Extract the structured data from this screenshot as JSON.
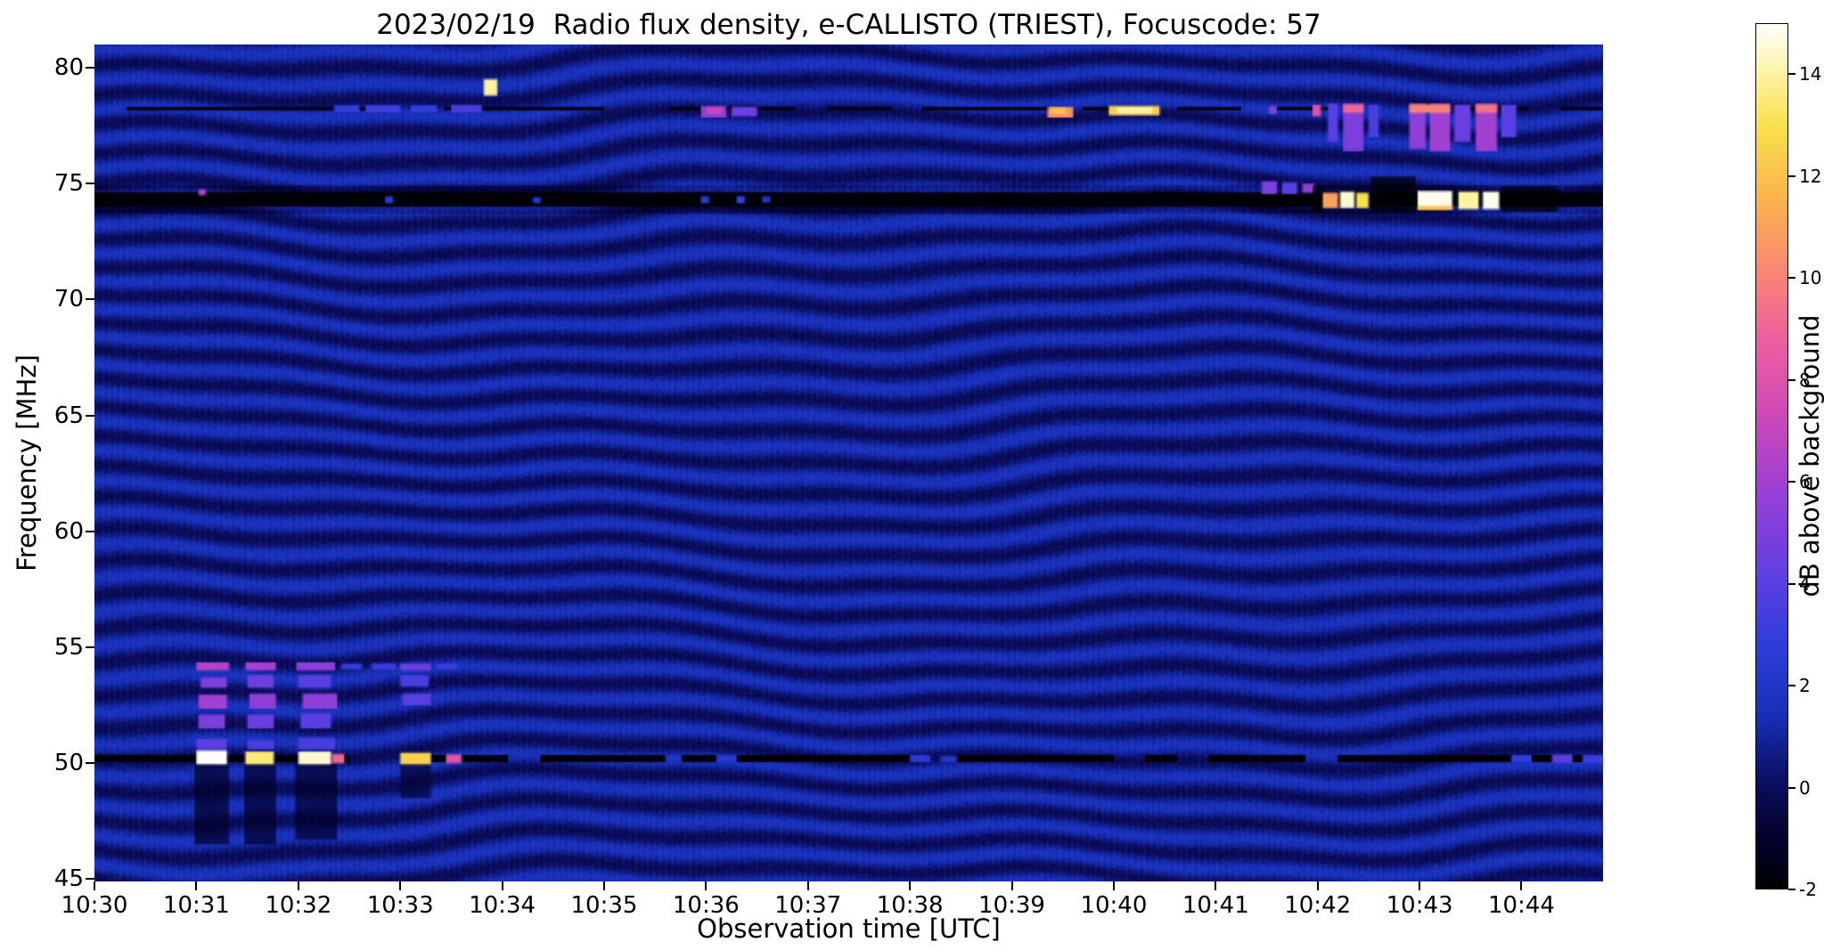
{
  "figure": {
    "background_color": "#ffffff",
    "axis_color": "#000000"
  },
  "chart_data": {
    "type": "heatmap",
    "title": "2023/02/19  Radio flux density, e-CALLISTO (TRIEST), Focuscode: 57",
    "xlabel": "Observation time [UTC]",
    "ylabel": "Frequency [MHz]",
    "x_axis": {
      "unit": "UTC time",
      "range_minutes_after_start": [
        0,
        14.8
      ],
      "tick_minutes": [
        0,
        1,
        2,
        3,
        4,
        5,
        6,
        7,
        8,
        9,
        10,
        11,
        12,
        13,
        14
      ],
      "tick_labels": [
        "10:30",
        "10:31",
        "10:32",
        "10:33",
        "10:34",
        "10:35",
        "10:36",
        "10:37",
        "10:38",
        "10:39",
        "10:40",
        "10:41",
        "10:42",
        "10:43",
        "10:44"
      ]
    },
    "y_axis": {
      "unit": "MHz",
      "range_mhz": [
        44.9,
        81.0
      ],
      "tick_values": [
        45,
        50,
        55,
        60,
        65,
        70,
        75,
        80
      ]
    },
    "colorbar": {
      "label": "dB above background",
      "range_db": [
        -2,
        15
      ],
      "tick_values": [
        -2,
        0,
        2,
        4,
        6,
        8,
        10,
        12,
        14
      ],
      "gradient_stops": [
        {
          "pos": 0.0,
          "color": "#000004"
        },
        {
          "pos": 0.06,
          "color": "#03032e"
        },
        {
          "pos": 0.12,
          "color": "#0b0c5c"
        },
        {
          "pos": 0.2,
          "color": "#1730b8"
        },
        {
          "pos": 0.28,
          "color": "#2e3ddb"
        },
        {
          "pos": 0.36,
          "color": "#5e3fe2"
        },
        {
          "pos": 0.46,
          "color": "#9b3fd5"
        },
        {
          "pos": 0.55,
          "color": "#cf4ab8"
        },
        {
          "pos": 0.64,
          "color": "#f0619c"
        },
        {
          "pos": 0.72,
          "color": "#f98a70"
        },
        {
          "pos": 0.8,
          "color": "#fcb44e"
        },
        {
          "pos": 0.88,
          "color": "#f9e04b"
        },
        {
          "pos": 0.94,
          "color": "#fdf3a0"
        },
        {
          "pos": 1.0,
          "color": "#ffffff"
        }
      ]
    },
    "background_pattern": {
      "description": "undulating horizontal interference fringes over dark blue background",
      "base_db": 0.75,
      "fringe_amplitude_db": 0.85,
      "fringe_spacing_mhz": 1.3,
      "column_mod_db": 0.18,
      "noise_db": 0.55
    },
    "rfi_lines": [
      {
        "f_center": 74.32,
        "half_width": 0.33,
        "db": -1.95,
        "solid": true,
        "duty": 1.0
      },
      {
        "f_center": 50.2,
        "half_width": 0.17,
        "db": -1.85,
        "solid": false,
        "duty": 0.78
      },
      {
        "f_center": 78.22,
        "half_width": 0.09,
        "db": -1.5,
        "solid": false,
        "duty": 0.6
      }
    ],
    "burst_features_columns": [
      "t_start_min",
      "t_end_min",
      "f_low_mhz",
      "f_high_mhz",
      "db"
    ],
    "burst_features": [
      [
        0.98,
        1.32,
        46.5,
        50.0,
        -1.1
      ],
      [
        1.47,
        1.78,
        46.5,
        50.0,
        -1.0
      ],
      [
        1.97,
        2.38,
        46.7,
        50.0,
        -1.0
      ],
      [
        3.0,
        3.3,
        48.5,
        50.0,
        -0.8
      ],
      [
        1.0,
        1.3,
        49.95,
        50.55,
        15
      ],
      [
        1.48,
        1.76,
        49.95,
        50.5,
        13.5
      ],
      [
        2.0,
        2.32,
        49.95,
        50.5,
        14.5
      ],
      [
        2.33,
        2.45,
        50.0,
        50.4,
        9
      ],
      [
        3.0,
        3.3,
        49.95,
        50.45,
        12.5
      ],
      [
        3.45,
        3.6,
        50.0,
        50.38,
        8
      ],
      [
        1.0,
        1.3,
        50.6,
        51.05,
        4
      ],
      [
        1.02,
        1.28,
        51.5,
        52.1,
        5
      ],
      [
        1.02,
        1.3,
        52.35,
        52.95,
        6
      ],
      [
        1.04,
        1.3,
        53.25,
        53.7,
        5
      ],
      [
        1.0,
        1.32,
        54.0,
        54.35,
        6.5
      ],
      [
        1.5,
        1.76,
        50.6,
        51.0,
        3.5
      ],
      [
        1.5,
        1.76,
        51.5,
        52.1,
        4.5
      ],
      [
        1.52,
        1.78,
        52.35,
        53.0,
        5.5
      ],
      [
        1.5,
        1.76,
        53.25,
        53.8,
        4.5
      ],
      [
        1.48,
        1.78,
        54.0,
        54.35,
        6
      ],
      [
        2.0,
        2.36,
        50.6,
        51.1,
        3.5
      ],
      [
        2.02,
        2.32,
        51.5,
        52.15,
        4
      ],
      [
        2.04,
        2.38,
        52.35,
        53.0,
        5.5
      ],
      [
        2.0,
        2.32,
        53.25,
        53.8,
        4
      ],
      [
        1.98,
        2.36,
        54.0,
        54.35,
        5.5
      ],
      [
        3.02,
        3.3,
        52.5,
        53.0,
        4
      ],
      [
        3.0,
        3.28,
        53.3,
        53.8,
        3.5
      ],
      [
        3.0,
        3.3,
        54.0,
        54.3,
        4.5
      ],
      [
        2.42,
        2.62,
        54.05,
        54.3,
        3
      ],
      [
        2.72,
        2.96,
        54.05,
        54.3,
        3.2
      ],
      [
        3.36,
        3.56,
        54.05,
        54.3,
        3
      ],
      [
        2.35,
        2.6,
        78.08,
        78.38,
        2.8
      ],
      [
        2.66,
        3.0,
        78.08,
        78.38,
        3.2
      ],
      [
        3.1,
        3.36,
        78.08,
        78.38,
        2.8
      ],
      [
        3.5,
        3.8,
        78.06,
        78.4,
        3.5
      ],
      [
        5.95,
        6.2,
        77.85,
        78.35,
        5.5
      ],
      [
        6.0,
        6.16,
        78.0,
        78.3,
        7
      ],
      [
        6.25,
        6.5,
        77.9,
        78.3,
        4.5
      ],
      [
        9.35,
        9.6,
        77.85,
        78.3,
        10.5
      ],
      [
        9.38,
        9.53,
        78.0,
        78.28,
        12
      ],
      [
        9.95,
        10.45,
        77.95,
        78.35,
        12.5
      ],
      [
        10.03,
        10.38,
        78.02,
        78.3,
        14
      ],
      [
        3.82,
        3.95,
        78.8,
        79.5,
        14
      ],
      [
        11.52,
        11.6,
        78.0,
        78.35,
        5
      ],
      [
        11.95,
        12.03,
        77.9,
        78.4,
        8
      ],
      [
        12.1,
        12.2,
        76.8,
        78.45,
        4
      ],
      [
        12.25,
        12.45,
        76.4,
        78.45,
        5
      ],
      [
        12.5,
        12.6,
        77.0,
        78.4,
        3.5
      ],
      [
        12.9,
        13.06,
        76.5,
        78.45,
        5.5
      ],
      [
        13.1,
        13.3,
        76.4,
        78.45,
        6
      ],
      [
        13.34,
        13.5,
        76.8,
        78.4,
        4.5
      ],
      [
        13.55,
        13.76,
        76.4,
        78.45,
        6
      ],
      [
        13.8,
        13.95,
        77.0,
        78.4,
        4
      ],
      [
        12.25,
        12.45,
        78.05,
        78.42,
        9
      ],
      [
        12.9,
        13.3,
        78.05,
        78.42,
        10
      ],
      [
        13.55,
        13.76,
        78.05,
        78.42,
        9.5
      ],
      [
        11.45,
        11.6,
        74.55,
        75.1,
        5
      ],
      [
        11.65,
        11.8,
        74.55,
        75.05,
        4
      ],
      [
        11.85,
        11.97,
        74.6,
        75.0,
        5.5
      ],
      [
        11.95,
        12.05,
        73.75,
        74.9,
        -2
      ],
      [
        12.52,
        12.96,
        73.75,
        75.3,
        -2
      ],
      [
        13.8,
        14.35,
        73.78,
        74.9,
        -2
      ],
      [
        12.05,
        12.2,
        73.95,
        74.6,
        11
      ],
      [
        12.22,
        12.36,
        73.95,
        74.65,
        14.5
      ],
      [
        12.38,
        12.5,
        73.95,
        74.6,
        13
      ],
      [
        12.98,
        13.32,
        73.9,
        74.68,
        14.8
      ],
      [
        12.98,
        13.32,
        73.86,
        74.04,
        12
      ],
      [
        13.38,
        13.58,
        73.9,
        74.65,
        14
      ],
      [
        13.62,
        13.78,
        73.9,
        74.65,
        14.8
      ],
      [
        2.85,
        2.93,
        74.15,
        74.45,
        2.5
      ],
      [
        4.3,
        4.38,
        74.15,
        74.42,
        2
      ],
      [
        5.95,
        6.03,
        74.15,
        74.45,
        2.5
      ],
      [
        6.3,
        6.38,
        74.15,
        74.45,
        3
      ],
      [
        6.55,
        6.63,
        74.18,
        74.45,
        2
      ],
      [
        1.02,
        1.09,
        74.5,
        74.75,
        6.5
      ],
      [
        5.6,
        5.76,
        50.05,
        50.35,
        2
      ],
      [
        6.1,
        6.3,
        50.05,
        50.35,
        2.4
      ],
      [
        8.0,
        8.2,
        50.05,
        50.35,
        2.5
      ],
      [
        8.3,
        8.46,
        50.05,
        50.32,
        2.2
      ],
      [
        13.9,
        14.1,
        50.05,
        50.35,
        2.8
      ],
      [
        14.3,
        14.5,
        50.02,
        50.38,
        4
      ],
      [
        14.6,
        14.8,
        50.02,
        50.35,
        3.2
      ]
    ]
  }
}
